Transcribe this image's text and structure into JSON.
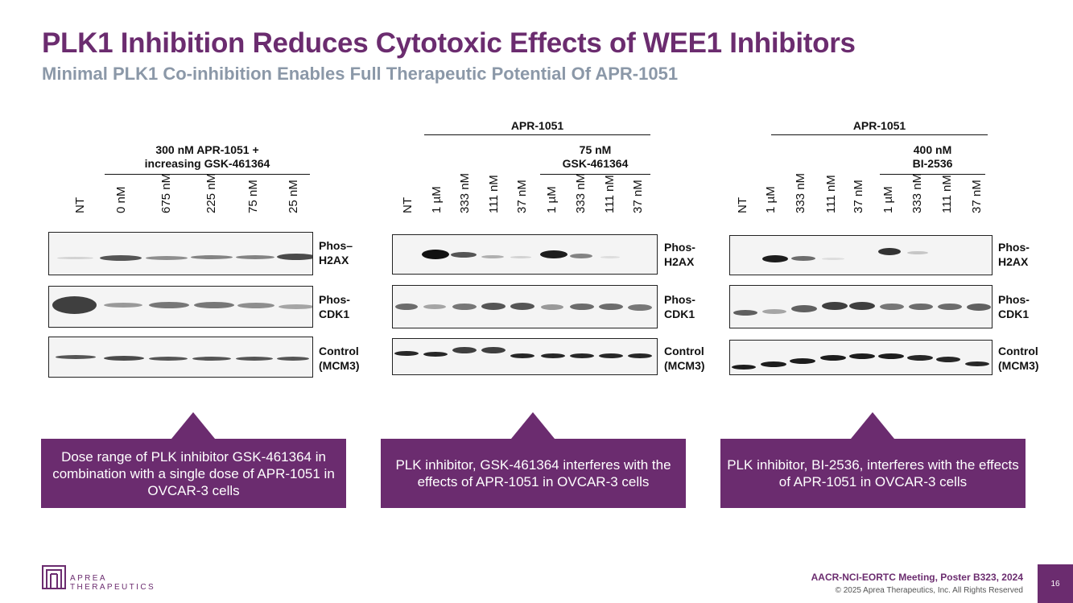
{
  "header": {
    "title": "PLK1 Inhibition Reduces Cytotoxic Effects of WEE1 Inhibitors",
    "subtitle": "Minimal PLK1 Co-inhibition Enables Full Therapeutic Potential Of APR-1051"
  },
  "panel1": {
    "header_line1": "300 nM APR-1051 +",
    "header_line2": "increasing GSK-461364",
    "lanes": [
      "NT",
      "0 nM",
      "675 nM",
      "225 nM",
      "75 nM",
      "25 nM"
    ],
    "row1_label": [
      "Phos–",
      "H2AX"
    ],
    "row2_label": [
      "Phos-",
      "CDK1"
    ],
    "row3_label": [
      "Control",
      "(MCM3)"
    ],
    "callout": "Dose range of PLK inhibitor GSK-461364 in combination with a single dose of APR-1051 in OVCAR-3 cells"
  },
  "panel2": {
    "top_header": "APR-1051",
    "sub_header_line1": "75 nM",
    "sub_header_line2": "GSK-461364",
    "lanes": [
      "NT",
      "1 µM",
      "333 nM",
      "111 nM",
      "37 nM",
      "1 µM",
      "333 nM",
      "111 nM",
      "37 nM"
    ],
    "row1_label": [
      "Phos-",
      "H2AX"
    ],
    "row2_label": [
      "Phos-",
      "CDK1"
    ],
    "row3_label": [
      "Control",
      "(MCM3)"
    ],
    "callout": "PLK inhibitor, GSK-461364 interferes with the effects of APR-1051 in OVCAR-3 cells"
  },
  "panel3": {
    "top_header": "APR-1051",
    "sub_header_line1": "400 nM",
    "sub_header_line2": "BI-2536",
    "lanes": [
      "NT",
      "1 µM",
      "333 nM",
      "111 nM",
      "37 nM",
      "1 µM",
      "333 nM",
      "111 nM",
      "37 nM"
    ],
    "row1_label": [
      "Phos-",
      "H2AX"
    ],
    "row2_label": [
      "Phos-",
      "CDK1"
    ],
    "row3_label": [
      "Control",
      "(MCM3)"
    ],
    "callout": "PLK inhibitor, BI-2536, interferes with the effects of APR-1051 in OVCAR-3 cells"
  },
  "footer": {
    "logo_line1": "APREA",
    "logo_line2": "THERAPEUTICS",
    "meeting": "AACR-NCI-EORTC Meeting, Poster B323, 2024",
    "copyright": "© 2025 Aprea Therapeutics, Inc. All Rights Reserved",
    "page_number": "16"
  }
}
